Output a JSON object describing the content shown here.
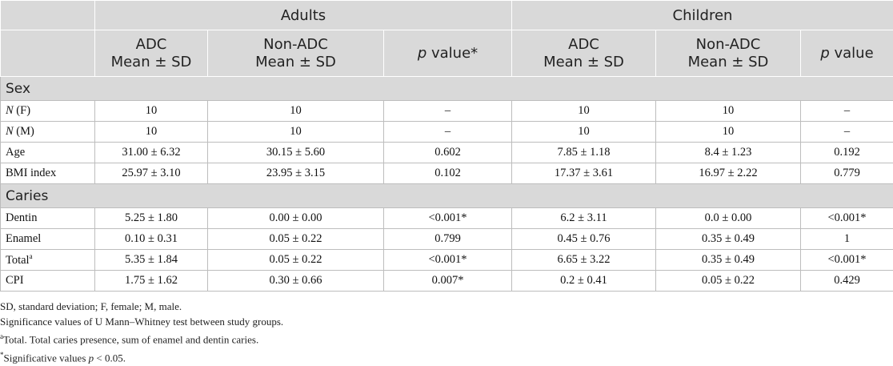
{
  "groups": {
    "adults": "Adults",
    "children": "Children"
  },
  "subheaders": {
    "adc": [
      "ADC",
      "Mean ± SD"
    ],
    "non_adc": [
      "Non-ADC",
      "Mean ± SD"
    ],
    "p_adults": {
      "p": "p",
      "rest": " value*"
    },
    "p_children": {
      "p": "p",
      "rest": " value"
    }
  },
  "sections": {
    "sex": {
      "title": "Sex",
      "rows": [
        {
          "label_italic": "N",
          "label_rest": " (F)",
          "values": [
            "10",
            "10",
            "–",
            "10",
            "10",
            "–"
          ]
        },
        {
          "label_italic": "N",
          "label_rest": " (M)",
          "values": [
            "10",
            "10",
            "–",
            "10",
            "10",
            "–"
          ]
        },
        {
          "label": "Age",
          "values": [
            "31.00 ± 6.32",
            "30.15 ± 5.60",
            "0.602",
            "7.85 ± 1.18",
            "8.4 ± 1.23",
            "0.192"
          ]
        },
        {
          "label": "BMI index",
          "values": [
            "25.97 ± 3.10",
            "23.95 ± 3.15",
            "0.102",
            "17.37 ± 3.61",
            "16.97 ± 2.22",
            "0.779"
          ]
        }
      ]
    },
    "caries": {
      "title": "Caries",
      "rows": [
        {
          "label": "Dentin",
          "values": [
            "5.25 ± 1.80",
            "0.00 ± 0.00",
            "<0.001*",
            "6.2 ± 3.11",
            "0.0 ± 0.00",
            "<0.001*"
          ]
        },
        {
          "label": "Enamel",
          "values": [
            "0.10 ± 0.31",
            "0.05 ± 0.22",
            "0.799",
            "0.45 ± 0.76",
            "0.35 ± 0.49",
            "1"
          ]
        },
        {
          "label": "Total",
          "label_sup": "a",
          "values": [
            "5.35 ± 1.84",
            "0.05 ± 0.22",
            "<0.001*",
            "6.65 ± 3.22",
            "0.35 ± 0.49",
            "<0.001*"
          ]
        },
        {
          "label": "CPI",
          "values": [
            "1.75 ± 1.62",
            "0.30 ± 0.66",
            "0.007*",
            "0.2 ± 0.41",
            "0.05 ± 0.22",
            "0.429"
          ]
        }
      ]
    }
  },
  "footnotes": {
    "abbr": "SD, standard deviation; F, female; M, male.",
    "significance": "Significance values of U Mann–Whitney test between study groups.",
    "total_sup": "a",
    "total_text": "Total. Total caries presence, sum of enamel and dentin caries.",
    "sig_sup": "*",
    "sig_text": "Significative values ",
    "sig_p": "p",
    "sig_tail": " < 0.05."
  }
}
